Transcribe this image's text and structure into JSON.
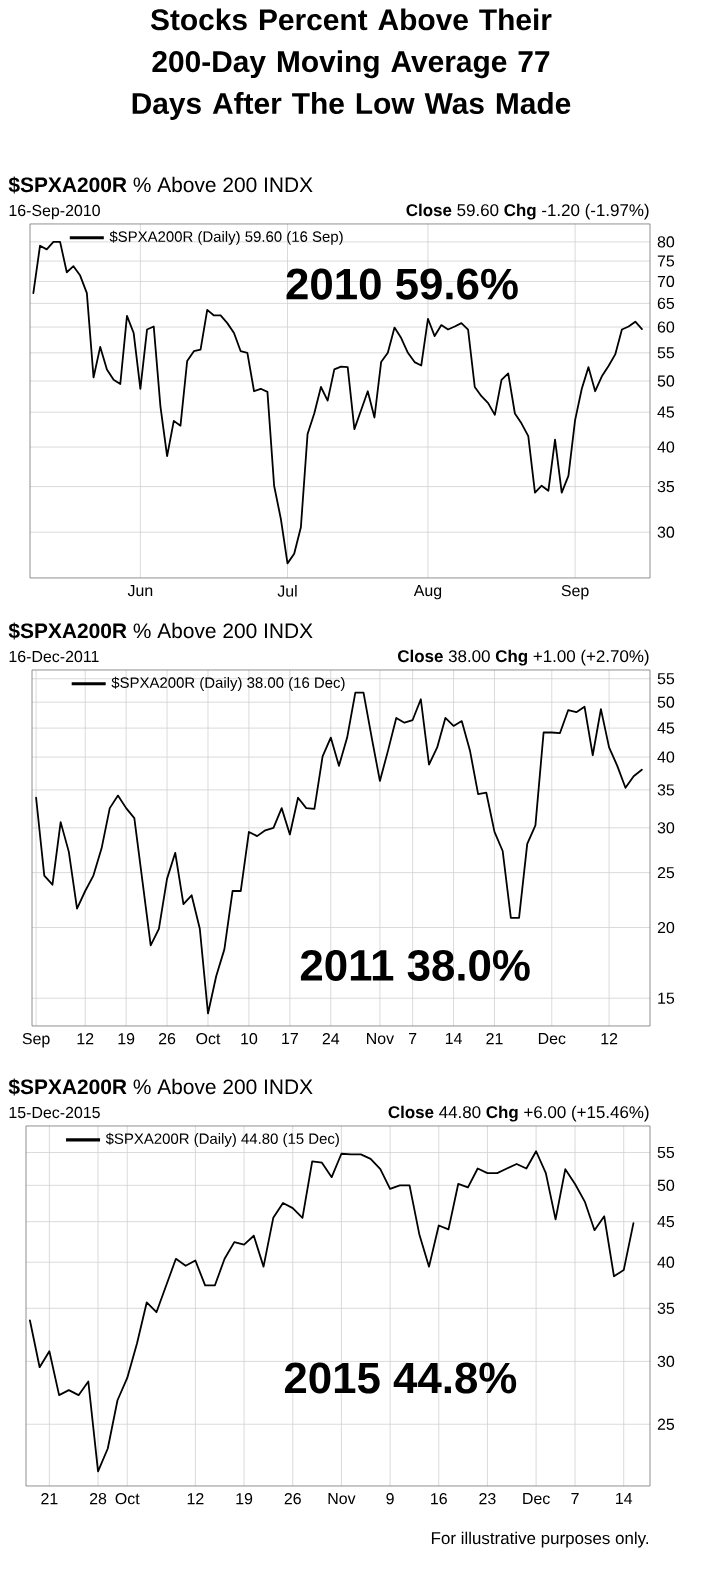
{
  "chart_data": [
    {
      "type": "line",
      "title": "**$SPXA200R** % Above 200 INDX",
      "subtitle": "16-Sep-2010",
      "log": true,
      "grid": true,
      "legend": "top left",
      "annotations": [
        "**Close** 59.60 **Chg** -1.20 (-1.97%)",
        "2010 59.6%",
        "Stocks Percent Above Their 200-Day Moving Average 77 Days After The Low Was Made"
      ],
      "ylim": [
        25.7,
        85
      ],
      "categories": [
        null,
        null,
        null,
        null,
        null,
        null,
        null,
        null,
        null,
        null,
        null,
        null,
        null,
        null,
        null,
        null,
        "Jun",
        null,
        null,
        null,
        null,
        null,
        null,
        null,
        null,
        null,
        null,
        null,
        null,
        null,
        null,
        null,
        null,
        null,
        null,
        null,
        null,
        null,
        "Jul",
        null,
        null,
        null,
        null,
        null,
        null,
        null,
        null,
        null,
        null,
        null,
        null,
        null,
        null,
        null,
        null,
        null,
        null,
        null,
        null,
        "Aug",
        null,
        null,
        null,
        null,
        null,
        null,
        null,
        null,
        null,
        null,
        null,
        null,
        null,
        null,
        null,
        null,
        null,
        null,
        null,
        null,
        null,
        "Sep",
        null,
        null,
        null,
        null,
        null,
        null,
        null,
        null,
        null,
        null
      ],
      "yticks": [
        30,
        35,
        40,
        45,
        50,
        55,
        60,
        65,
        70,
        75,
        80
      ],
      "series": [
        {
          "name": "$SPXA200R (Daily) 59.60 (16 Sep)",
          "color": "#000000",
          "values": [
            67.3,
            79,
            78,
            80,
            80,
            72.2,
            73.7,
            71.4,
            67.3,
            50.6,
            56.1,
            52,
            50.2,
            49.5,
            62.3,
            58.8,
            48.7,
            59.5,
            60.1,
            45.9,
            38.8,
            43.7,
            43,
            53.5,
            55.3,
            55.6,
            63.6,
            62.4,
            62.4,
            60.8,
            58.8,
            55.3,
            55,
            48.3,
            48.7,
            48.2,
            35.1,
            31.4,
            27,
            27.9,
            30.5,
            41.8,
            44.8,
            49,
            46.8,
            52,
            52.5,
            52.4,
            42.5,
            45.3,
            48.3,
            44.2,
            53.3,
            55,
            59.9,
            57.8,
            55,
            53.3,
            52.7,
            61.7,
            58.2,
            60.4,
            59.5,
            60.1,
            60.8,
            59.5,
            49,
            47.5,
            46.4,
            44.6,
            50.2,
            51.3,
            44.8,
            43.3,
            41.5,
            34.3,
            35.1,
            34.5,
            41,
            34.3,
            36.3,
            43.8,
            48.7,
            52.4,
            48.3,
            50.8,
            52.6,
            54.7,
            59.5,
            60.1,
            61.1,
            59.6
          ]
        }
      ]
    },
    {
      "type": "line",
      "title": "**$SPXA200R** % Above 200 INDX",
      "subtitle": "16-Dec-2011",
      "log": true,
      "grid": true,
      "legend": "top left",
      "annotations": [
        "**Close** 38.00 **Chg** +1.00 (+2.70%)",
        "2011 38.0%"
      ],
      "ylim": [
        13.4,
        57
      ],
      "categories": [
        "Sep",
        null,
        null,
        null,
        null,
        null,
        "12",
        null,
        null,
        null,
        null,
        "19",
        null,
        null,
        null,
        null,
        "26",
        null,
        null,
        null,
        null,
        "Oct",
        null,
        null,
        null,
        null,
        "10",
        null,
        null,
        null,
        null,
        "17",
        null,
        null,
        null,
        null,
        "24",
        null,
        null,
        null,
        null,
        null,
        "Nov",
        null,
        null,
        null,
        "7",
        null,
        null,
        null,
        null,
        "14",
        null,
        null,
        null,
        null,
        "21",
        null,
        null,
        null,
        null,
        null,
        null,
        "Dec",
        null,
        null,
        null,
        null,
        null,
        null,
        "12",
        null,
        null,
        null,
        null
      ],
      "yticks": [
        15,
        20,
        25,
        30,
        35,
        40,
        45,
        50,
        55
      ],
      "series": [
        {
          "name": "$SPXA200R (Daily) 38.00 (16 Dec)",
          "color": "#000000",
          "values": [
            33.9,
            24.7,
            23.8,
            30.7,
            27.2,
            21.6,
            23.2,
            24.7,
            27.6,
            32.5,
            34.2,
            32.5,
            31.2,
            24.1,
            18.6,
            19.9,
            24.4,
            27.1,
            22,
            22.8,
            19.9,
            14.1,
            16.4,
            18.3,
            23.2,
            23.2,
            29.5,
            29,
            29.7,
            30,
            32.5,
            29.2,
            33.9,
            32.5,
            32.4,
            40.1,
            43.3,
            38.6,
            43.3,
            52,
            52,
            43.3,
            36.3,
            41.1,
            46.9,
            46,
            46.5,
            50.6,
            38.8,
            41.6,
            46.9,
            45.4,
            46.3,
            41.1,
            34.4,
            34.6,
            29.5,
            27.3,
            20.8,
            20.8,
            28.1,
            30.3,
            44.2,
            44.2,
            44.1,
            48.4,
            48,
            49.1,
            40.3,
            48.6,
            41.6,
            38.6,
            35.3,
            37,
            38
          ]
        }
      ]
    },
    {
      "type": "line",
      "title": "**$SPXA200R** % Above 200 INDX",
      "subtitle": "15-Dec-2015",
      "log": true,
      "grid": true,
      "legend": "top left",
      "annotations": [
        "**Close** 44.80 **Chg** +6.00 (+15.46%)",
        "2015 44.8%",
        "For illustrative purposes only."
      ],
      "ylim": [
        20.9,
        59.4
      ],
      "categories": [
        null,
        null,
        "21",
        null,
        null,
        null,
        null,
        "28",
        null,
        null,
        "Oct",
        null,
        null,
        null,
        null,
        null,
        null,
        "12",
        null,
        null,
        null,
        null,
        "19",
        null,
        null,
        null,
        null,
        "26",
        null,
        null,
        null,
        null,
        "Nov",
        null,
        null,
        null,
        null,
        "9",
        null,
        null,
        null,
        null,
        "16",
        null,
        null,
        null,
        null,
        "23",
        null,
        null,
        null,
        null,
        "Dec",
        null,
        null,
        null,
        "7",
        null,
        null,
        null,
        null,
        "14",
        null
      ],
      "yticks": [
        25,
        30,
        35,
        40,
        45,
        50,
        55
      ],
      "series": [
        {
          "name": "$SPXA200R (Daily) 44.80 (15 Dec)",
          "color": "#000000",
          "values": [
            33.8,
            29.5,
            30.9,
            27.2,
            27.6,
            27.2,
            28.3,
            21.8,
            23.3,
            26.8,
            28.6,
            31.6,
            35.6,
            34.6,
            37.4,
            40.4,
            39.6,
            40.2,
            37.4,
            37.4,
            40.4,
            42.4,
            42.1,
            43.2,
            39.5,
            45.5,
            47.5,
            46.8,
            45.5,
            53.6,
            53.4,
            51.2,
            54.8,
            54.7,
            54.7,
            54,
            52.4,
            49.5,
            50,
            50,
            43.4,
            39.5,
            44.5,
            44,
            50.2,
            49.7,
            52.5,
            51.8,
            51.8,
            52.5,
            53.2,
            52.5,
            55.2,
            51.8,
            45.3,
            52.4,
            50.2,
            47.7,
            43.9,
            45.7,
            38.4,
            39.1,
            44.8
          ]
        }
      ]
    }
  ]
}
